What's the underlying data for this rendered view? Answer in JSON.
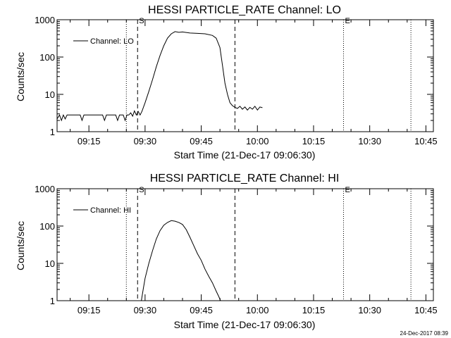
{
  "footer_timestamp": "24-Dec-2017 08:39",
  "chart_data": [
    {
      "type": "line",
      "title": "HESSI PARTICLE_RATE Channel: LO",
      "xlabel": "Start Time (21-Dec-17 09:06:30)",
      "ylabel": "Counts/sec",
      "y_scale": "log",
      "ylim": [
        1,
        1000
      ],
      "xlim": [
        "09:06:30",
        "10:47:00"
      ],
      "y_ticks": [
        1,
        10,
        100,
        1000
      ],
      "y_tick_labels": [
        "1",
        "10",
        "100",
        "1000"
      ],
      "x_ticks": [
        "09:15",
        "09:30",
        "09:45",
        "10:00",
        "10:15",
        "10:30",
        "10:45"
      ],
      "legend": {
        "position": "top-left",
        "entries": [
          "Channel: LO"
        ]
      },
      "markers": [
        {
          "time": "09:25:00",
          "style": "dotted",
          "label": ""
        },
        {
          "time": "09:28:00",
          "style": "dashed",
          "label": "S"
        },
        {
          "time": "09:54:00",
          "style": "dashed",
          "label": ""
        },
        {
          "time": "10:23:00",
          "style": "dotted",
          "label": "E"
        },
        {
          "time": "10:41:00",
          "style": "dotted",
          "label": ""
        }
      ],
      "series": [
        {
          "name": "Channel: LO",
          "x": [
            "09:06:30",
            "09:07:10",
            "09:07:40",
            "09:08:10",
            "09:08:40",
            "09:09:10",
            "09:09:40",
            "09:10:10",
            "09:10:40",
            "09:11:10",
            "09:11:40",
            "09:12:10",
            "09:12:40",
            "09:13:10",
            "09:13:40",
            "09:14:10",
            "09:14:40",
            "09:15:10",
            "09:15:40",
            "09:16:10",
            "09:16:40",
            "09:17:10",
            "09:17:40",
            "09:18:10",
            "09:18:40",
            "09:19:10",
            "09:19:40",
            "09:20:10",
            "09:20:40",
            "09:21:10",
            "09:21:40",
            "09:22:10",
            "09:22:40",
            "09:23:10",
            "09:23:40",
            "09:24:10",
            "09:24:40",
            "09:25:10",
            "09:25:40",
            "09:26:10",
            "09:26:40",
            "09:27:10",
            "09:27:40",
            "09:28:10",
            "09:28:40",
            "09:29:10",
            "09:30:00",
            "09:31:00",
            "09:32:00",
            "09:33:00",
            "09:34:00",
            "09:35:00",
            "09:36:00",
            "09:37:00",
            "09:38:00",
            "09:39:00",
            "09:40:00",
            "09:42:00",
            "09:44:00",
            "09:46:00",
            "09:48:00",
            "09:49:00",
            "09:50:00",
            "09:50:40",
            "09:51:20",
            "09:52:00",
            "09:52:40",
            "09:53:20",
            "09:54:00",
            "09:54:40",
            "09:55:20",
            "09:56:00",
            "09:56:40",
            "09:57:20",
            "09:58:00",
            "09:58:40",
            "09:59:20",
            "10:00:00",
            "10:00:40",
            "10:01:20"
          ],
          "y": [
            2.2,
            2.8,
            2.0,
            2.8,
            2.2,
            2.8,
            2.8,
            2.8,
            2.8,
            2.8,
            2.8,
            2.8,
            2.8,
            2.0,
            2.8,
            2.8,
            2.8,
            2.8,
            2.8,
            2.8,
            2.8,
            2.8,
            2.8,
            2.8,
            2.8,
            2.0,
            2.8,
            2.8,
            2.8,
            2.8,
            2.8,
            2.8,
            2.0,
            2.8,
            2.8,
            2.8,
            2.0,
            2.8,
            2.8,
            3.2,
            2.6,
            3.6,
            2.8,
            3.5,
            2.8,
            3.5,
            6,
            12,
            25,
            55,
            110,
            200,
            320,
            420,
            480,
            460,
            470,
            440,
            430,
            420,
            380,
            320,
            180,
            60,
            20,
            10,
            6,
            5,
            4.5,
            4.2,
            4.8,
            4.0,
            4.6,
            3.8,
            4.5,
            4.0,
            4.8,
            3.8,
            4.6,
            4.4
          ]
        }
      ]
    },
    {
      "type": "line",
      "title": "HESSI PARTICLE_RATE Channel: HI",
      "xlabel": "Start Time (21-Dec-17 09:06:30)",
      "ylabel": "Counts/sec",
      "y_scale": "log",
      "ylim": [
        1,
        1000
      ],
      "xlim": [
        "09:06:30",
        "10:47:00"
      ],
      "y_ticks": [
        1,
        10,
        100,
        1000
      ],
      "y_tick_labels": [
        "1",
        "10",
        "100",
        "1000"
      ],
      "x_ticks": [
        "09:15",
        "09:30",
        "09:45",
        "10:00",
        "10:15",
        "10:30",
        "10:45"
      ],
      "legend": {
        "position": "top-left",
        "entries": [
          "Channel: HI"
        ]
      },
      "markers": [
        {
          "time": "09:25:00",
          "style": "dotted",
          "label": ""
        },
        {
          "time": "09:28:00",
          "style": "dashed",
          "label": "S"
        },
        {
          "time": "09:54:00",
          "style": "dashed",
          "label": ""
        },
        {
          "time": "10:23:00",
          "style": "dotted",
          "label": "E"
        },
        {
          "time": "10:41:00",
          "style": "dotted",
          "label": ""
        }
      ],
      "series": [
        {
          "name": "Channel: HI",
          "x": [
            "09:29:00",
            "09:29:30",
            "09:30:00",
            "09:31:00",
            "09:32:00",
            "09:33:00",
            "09:34:00",
            "09:35:00",
            "09:36:00",
            "09:37:00",
            "09:38:00",
            "09:39:00",
            "09:40:00",
            "09:41:00",
            "09:42:00",
            "09:43:00",
            "09:44:00",
            "09:45:00",
            "09:46:00",
            "09:47:00",
            "09:48:00",
            "09:49:00",
            "09:49:40",
            "09:50:10"
          ],
          "y": [
            1,
            2,
            4,
            10,
            22,
            45,
            75,
            105,
            125,
            140,
            135,
            125,
            110,
            80,
            50,
            30,
            18,
            12,
            7,
            4.5,
            3,
            1.8,
            1.3,
            1
          ]
        }
      ]
    }
  ]
}
